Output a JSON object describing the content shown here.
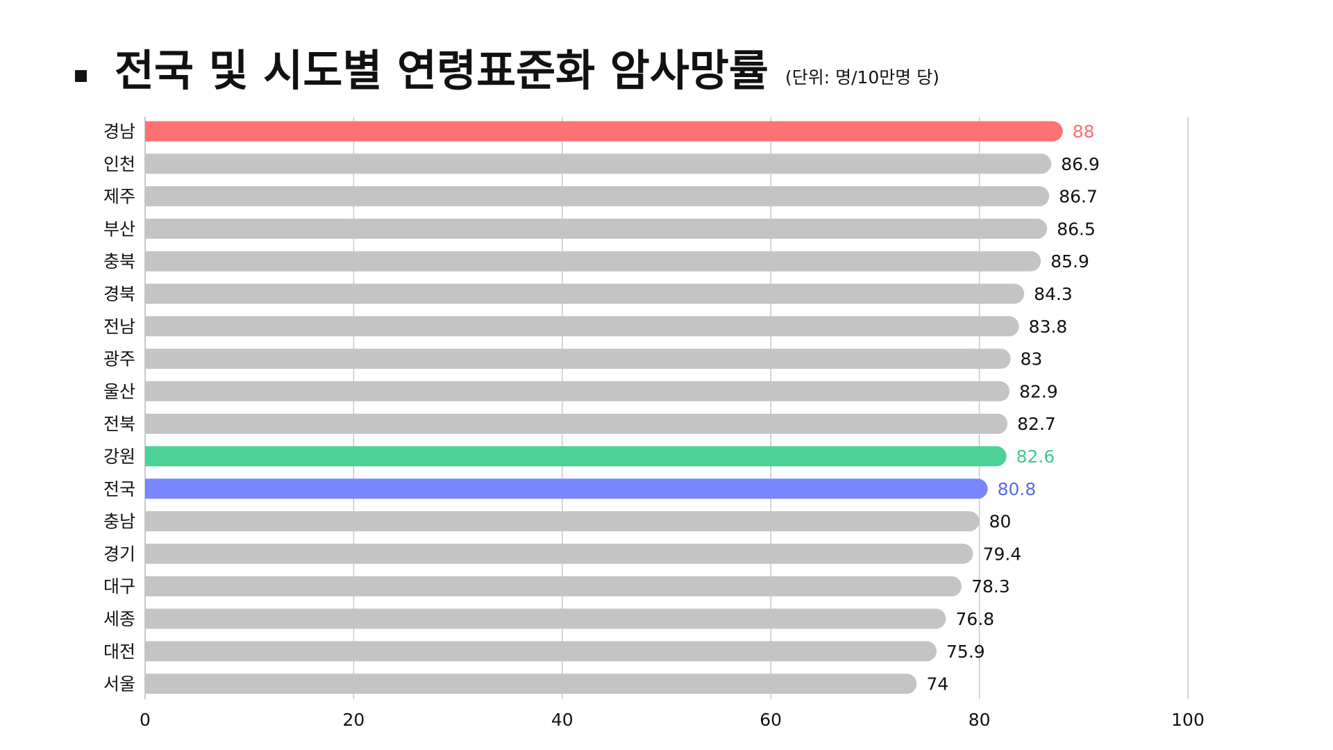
{
  "title": "전국 및 시도별 연령표준화 암사망률",
  "subtitle": "(단위: 명/10만명 당)",
  "chart_data": {
    "type": "bar",
    "orientation": "horizontal",
    "title": "전국 및 시도별 연령표준화 암사망률",
    "subtitle": "(단위: 명/10만명 당)",
    "categories": [
      "경남",
      "인천",
      "제주",
      "부산",
      "충북",
      "경북",
      "전남",
      "광주",
      "울산",
      "전북",
      "강원",
      "전국",
      "충남",
      "경기",
      "대구",
      "세종",
      "대전",
      "서울"
    ],
    "values": [
      88,
      86.9,
      86.7,
      86.5,
      85.9,
      84.3,
      83.8,
      83,
      82.9,
      82.7,
      82.6,
      80.8,
      80,
      79.4,
      78.3,
      76.8,
      75.9,
      74
    ],
    "value_labels": [
      "88",
      "86.9",
      "86.7",
      "86.5",
      "85.9",
      "84.3",
      "83.8",
      "83",
      "82.9",
      "82.7",
      "82.6",
      "80.8",
      "80",
      "79.4",
      "78.3",
      "76.8",
      "75.9",
      "74"
    ],
    "xlim": [
      0,
      100
    ],
    "xticks": [
      0,
      20,
      40,
      60,
      80,
      100
    ],
    "xtick_labels": [
      "0",
      "20",
      "40",
      "60",
      "80",
      "100"
    ],
    "grid": true,
    "xlabel": "",
    "ylabel": "",
    "default_bar_color": "#c4c4c4",
    "highlights": {
      "경남": {
        "bar": "#ff7272",
        "label": "#ff6b6b"
      },
      "강원": {
        "bar": "#4cd196",
        "label": "#3fc98c"
      },
      "전국": {
        "bar": "#7886ff",
        "label": "#5a6be8"
      }
    },
    "default_label_color": "#111111"
  }
}
